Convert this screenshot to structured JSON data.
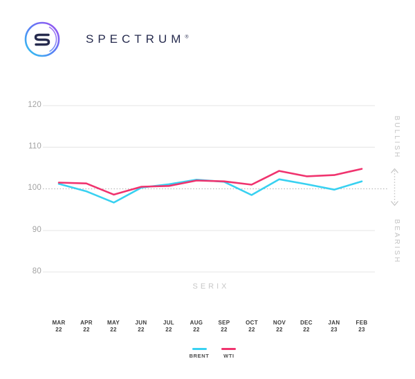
{
  "brand": {
    "name": "SPECTRUM",
    "registered": "®",
    "logo_letter": "S",
    "logo_colors": {
      "navy": "#262b4e",
      "gradient_start": "#2fc8f0",
      "gradient_mid": "#5a7ef5",
      "gradient_end": "#a14df0"
    }
  },
  "chart_data": {
    "type": "line",
    "title": "SERIX",
    "xlabel": "SERIX",
    "ylabel": "",
    "y_ticks": [
      "120",
      "110",
      "100",
      "90",
      "80"
    ],
    "ylim": [
      76,
      124
    ],
    "baseline": 100,
    "grid": "horizontal",
    "legend_position": "bottom-center",
    "categories": [
      {
        "month": "MAR",
        "year": "22"
      },
      {
        "month": "APR",
        "year": "22"
      },
      {
        "month": "MAY",
        "year": "22"
      },
      {
        "month": "JUN",
        "year": "22"
      },
      {
        "month": "JUL",
        "year": "22"
      },
      {
        "month": "AUG",
        "year": "22"
      },
      {
        "month": "SEP",
        "year": "22"
      },
      {
        "month": "OCT",
        "year": "22"
      },
      {
        "month": "NOV",
        "year": "22"
      },
      {
        "month": "DEC",
        "year": "22"
      },
      {
        "month": "JAN",
        "year": "23"
      },
      {
        "month": "FEB",
        "year": "23"
      }
    ],
    "series": [
      {
        "name": "BRENT",
        "color": "#38d1f1",
        "values": [
          101.2,
          99.4,
          96.7,
          100.3,
          101.1,
          102.2,
          101.7,
          98.5,
          102.3,
          101.1,
          99.8,
          101.8
        ]
      },
      {
        "name": "WTI",
        "color": "#f0336e",
        "values": [
          101.5,
          101.3,
          98.6,
          100.5,
          100.7,
          102.0,
          101.8,
          101.0,
          104.3,
          103.0,
          103.3,
          104.8
        ]
      }
    ],
    "right_axis": {
      "top_label": "BULLISH",
      "bottom_label": "BEARISH"
    }
  }
}
